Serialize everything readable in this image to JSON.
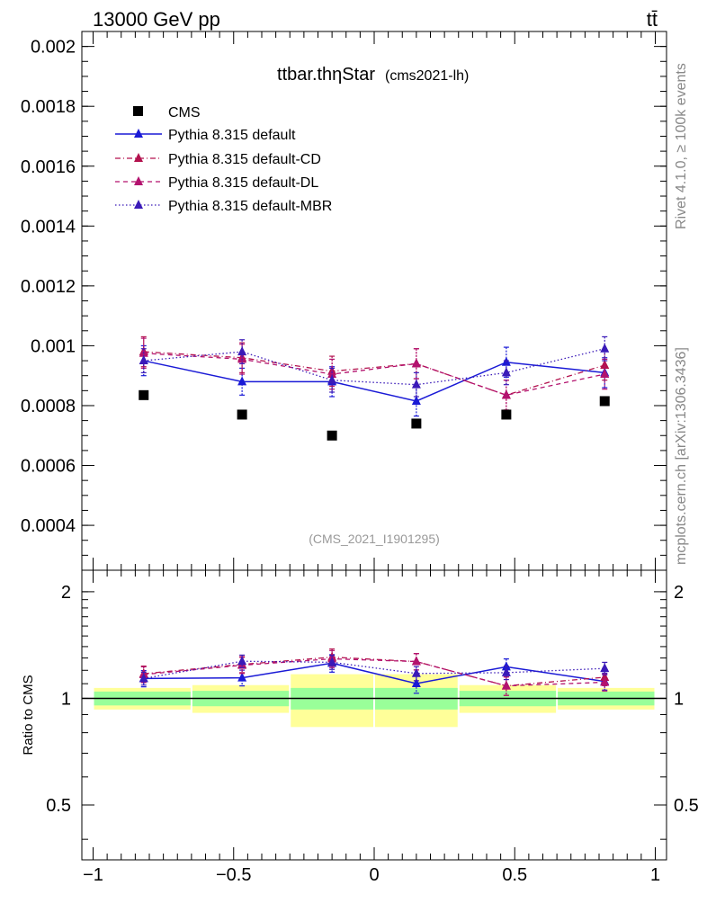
{
  "header": {
    "energy_label": "13000 GeV pp",
    "process_label": "tt̄"
  },
  "side_labels": {
    "rivet": "Rivet 4.1.0, ≥ 100k events",
    "mcplots": "mcplots.cern.ch [arXiv:1306.3436]"
  },
  "chart_data": {
    "type": "scatter",
    "title": "ttbar.thηStar",
    "subtitle": "(cms2021-lh)",
    "analysis_id": "(CMS_2021_I1901295)",
    "x": [
      -0.82,
      -0.47,
      -0.15,
      0.15,
      0.47,
      0.82
    ],
    "bin_edges": [
      -1.0,
      -0.65,
      -0.3,
      0.0,
      0.3,
      0.65,
      1.0
    ],
    "xlim": [
      -1.04,
      1.04
    ],
    "ylim": [
      0.00025,
      0.00205
    ],
    "x_ticks": [
      {
        "value": -1,
        "label": "−1"
      },
      {
        "value": -0.5,
        "label": "−0.5"
      },
      {
        "value": 0,
        "label": "0"
      },
      {
        "value": 0.5,
        "label": "0.5"
      },
      {
        "value": 1,
        "label": "1"
      }
    ],
    "y_ticks": [
      {
        "value": 0.0004,
        "label": "0.0004"
      },
      {
        "value": 0.0006,
        "label": "0.0006"
      },
      {
        "value": 0.0008,
        "label": "0.0008"
      },
      {
        "value": 0.001,
        "label": "0.001"
      },
      {
        "value": 0.0012,
        "label": "0.0012"
      },
      {
        "value": 0.0014,
        "label": "0.0014"
      },
      {
        "value": 0.0016,
        "label": "0.0016"
      },
      {
        "value": 0.0018,
        "label": "0.0018"
      },
      {
        "value": 0.002,
        "label": "0.002"
      }
    ],
    "legend_position": "top-left",
    "data_series": {
      "name": "CMS",
      "color": "#000000",
      "values": [
        0.000835,
        0.00077,
        0.0007,
        0.00074,
        0.00077,
        0.000815
      ]
    },
    "series": [
      {
        "name": "Pythia 8.315 default",
        "color": "#1a1ad6",
        "dash": "solid",
        "values": [
          0.00095,
          0.00088,
          0.00088,
          0.000815,
          0.000945,
          0.00091
        ],
        "errors": [
          5e-05,
          4.5e-05,
          5e-05,
          5e-05,
          5e-05,
          5e-05
        ]
      },
      {
        "name": "Pythia 8.315 default-CD",
        "color": "#b3124e",
        "dash": "dashdot",
        "values": [
          0.00098,
          0.00096,
          0.000915,
          0.00094,
          0.000835,
          0.000935
        ],
        "errors": [
          5e-05,
          5e-05,
          5e-05,
          5e-05,
          5e-05,
          5e-05
        ]
      },
      {
        "name": "Pythia 8.315 default-DL",
        "color": "#b3126e",
        "dash": "dashed",
        "values": [
          0.000975,
          0.000955,
          0.000905,
          0.00094,
          0.000835,
          0.000905
        ],
        "errors": [
          5e-05,
          5e-05,
          5e-05,
          5e-05,
          5e-05,
          5e-05
        ]
      },
      {
        "name": "Pythia 8.315 default-MBR",
        "color": "#3a1ab8",
        "dash": "dotted",
        "values": [
          0.00095,
          0.00098,
          0.000885,
          0.00087,
          0.00091,
          0.00099
        ],
        "errors": [
          4e-05,
          4e-05,
          4e-05,
          4e-05,
          4e-05,
          4e-05
        ]
      }
    ],
    "ratio": {
      "ylabel": "Ratio to CMS",
      "ylim": [
        0.35,
        2.3
      ],
      "y_ticks": [
        {
          "value": 0.5,
          "label": "0.5"
        },
        {
          "value": 1,
          "label": "1"
        },
        {
          "value": 2,
          "label": "2"
        }
      ],
      "band_green": [
        0.045,
        0.05,
        0.07,
        0.07,
        0.05,
        0.045
      ],
      "band_yellow": [
        0.07,
        0.09,
        0.17,
        0.17,
        0.09,
        0.07
      ]
    }
  }
}
